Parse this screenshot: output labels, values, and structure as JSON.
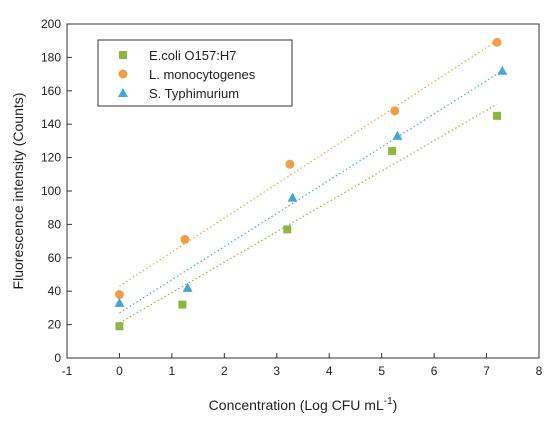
{
  "chart_data": {
    "type": "scatter",
    "xlabel": "Concentration (Log CFU mL",
    "xlabel_sup": "-1",
    "xlabel_end": ")",
    "ylabel": "Fluorescence intensity (Counts)",
    "xlim": [
      -1,
      8
    ],
    "ylim": [
      0,
      200
    ],
    "xticks": [
      -1,
      0,
      1,
      2,
      3,
      4,
      5,
      6,
      7,
      8
    ],
    "yticks": [
      0,
      20,
      40,
      60,
      80,
      100,
      120,
      140,
      160,
      180,
      200
    ],
    "grid": false,
    "legend_position": "top-left",
    "series": [
      {
        "name": "E.coli O157:H7",
        "marker": "square",
        "color": "#8db83f",
        "points": [
          [
            0,
            19
          ],
          [
            1.2,
            32
          ],
          [
            3.2,
            77
          ],
          [
            5.2,
            124
          ],
          [
            7.2,
            145
          ]
        ],
        "trendline": [
          [
            0,
            21
          ],
          [
            7.2,
            152
          ]
        ]
      },
      {
        "name": "L. monocytogenes",
        "marker": "circle",
        "color": "#f0a044",
        "points": [
          [
            0,
            38
          ],
          [
            1.25,
            71
          ],
          [
            3.25,
            116
          ],
          [
            5.25,
            148
          ],
          [
            7.2,
            189
          ]
        ],
        "trendline": [
          [
            0,
            43
          ],
          [
            7.2,
            190
          ]
        ]
      },
      {
        "name": "S. Typhimurium",
        "marker": "triangle",
        "color": "#3fa8d8",
        "points": [
          [
            0,
            33
          ],
          [
            1.3,
            42
          ],
          [
            3.3,
            96
          ],
          [
            5.3,
            133
          ],
          [
            7.3,
            172
          ]
        ],
        "trendline": [
          [
            0,
            27
          ],
          [
            7.3,
            172
          ]
        ]
      }
    ]
  }
}
